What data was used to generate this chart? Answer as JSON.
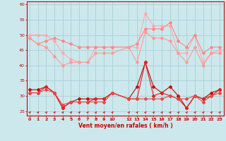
{
  "x": [
    0,
    1,
    2,
    3,
    4,
    5,
    6,
    7,
    8,
    9,
    10,
    12,
    13,
    14,
    15,
    16,
    17,
    18,
    19,
    20,
    21,
    22,
    23
  ],
  "line_upper1": [
    50,
    50,
    50,
    48,
    44,
    42,
    41,
    41,
    46,
    46,
    46,
    46,
    46,
    57,
    53,
    53,
    53,
    44,
    44,
    50,
    41,
    44,
    45
  ],
  "line_upper2": [
    49,
    47,
    48,
    49,
    48,
    47,
    46,
    46,
    46,
    46,
    46,
    46,
    47,
    52,
    52,
    52,
    54,
    48,
    46,
    50,
    44,
    46,
    46
  ],
  "line_upper3": [
    49,
    47,
    46,
    43,
    40,
    41,
    41,
    41,
    44,
    44,
    44,
    46,
    41,
    51,
    49,
    49,
    48,
    44,
    41,
    46,
    40,
    44,
    44
  ],
  "line_lower1": [
    32,
    32,
    33,
    31,
    26,
    28,
    29,
    29,
    29,
    29,
    31,
    29,
    33,
    41,
    33,
    31,
    33,
    30,
    26,
    30,
    29,
    31,
    32
  ],
  "line_lower2": [
    31,
    31,
    33,
    31,
    26,
    28,
    28,
    28,
    29,
    29,
    31,
    29,
    29,
    41,
    30,
    31,
    30,
    29,
    26,
    30,
    29,
    30,
    32
  ],
  "line_lower3": [
    31,
    31,
    32,
    31,
    27,
    28,
    28,
    28,
    28,
    28,
    31,
    29,
    29,
    29,
    29,
    29,
    30,
    29,
    29,
    30,
    28,
    30,
    31
  ],
  "bg_color": "#cce8ec",
  "grid_color": "#aad4d8",
  "color_upper_bright": "#ffaaaa",
  "color_upper_mid": "#ff8888",
  "color_upper_dark": "#ff9999",
  "color_lower_dark": "#cc0000",
  "color_lower_mid": "#dd2222",
  "color_lower_light": "#ee4444",
  "text_color": "#cc0000",
  "xlabel": "Vent moyen/en rafales ( km/h )",
  "yticks": [
    25,
    30,
    35,
    40,
    45,
    50,
    55,
    60
  ],
  "xticks": [
    0,
    1,
    2,
    3,
    4,
    5,
    6,
    7,
    8,
    9,
    10,
    12,
    13,
    14,
    15,
    16,
    17,
    18,
    19,
    20,
    21,
    22,
    23
  ],
  "xlim": [
    -0.3,
    23.5
  ],
  "ylim": [
    23.5,
    61
  ]
}
